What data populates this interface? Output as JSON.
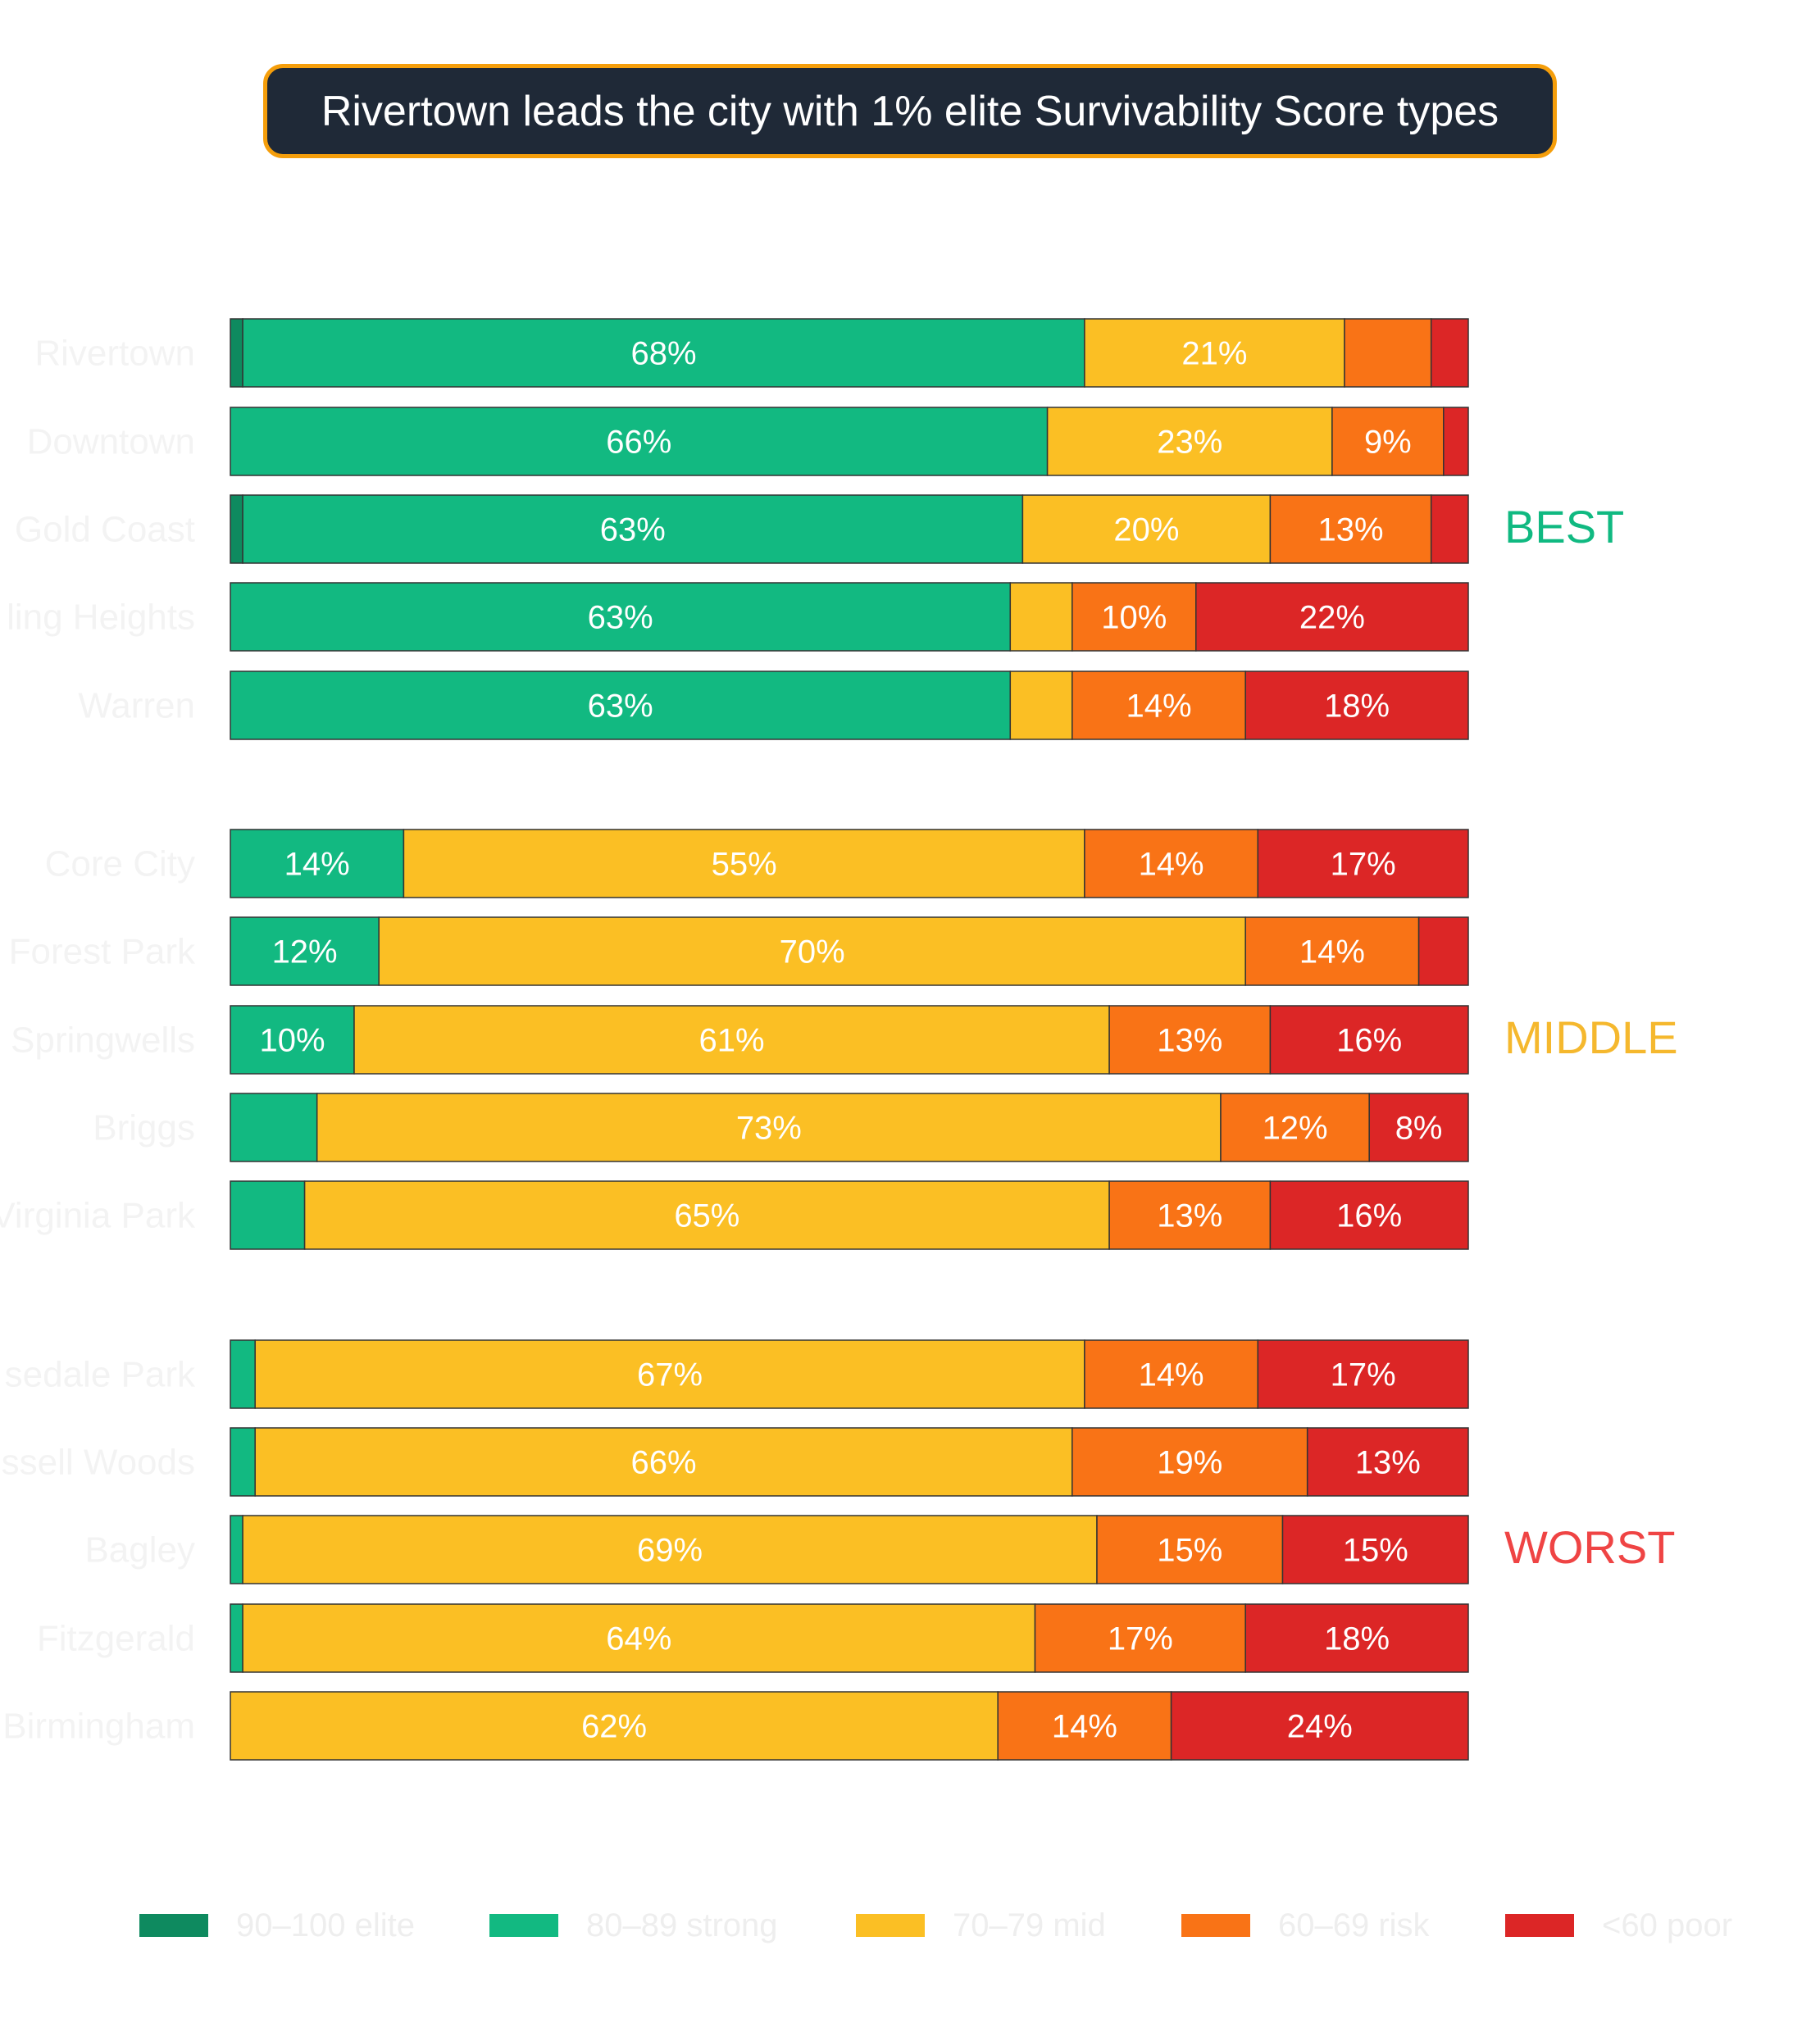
{
  "title": "Rivertown leads the city with 1% elite Survivability Score types",
  "chart_data": {
    "type": "bar",
    "orientation": "horizontal",
    "stacked": true,
    "title": "Rivertown leads the city with 1% elite Survivability Score types",
    "xlim": [
      0,
      100
    ],
    "categories": [
      "Rivertown",
      "Downtown",
      "Gold Coast",
      "Palmer Woods / Sherwood / Boston-Edison Heights — Sterling Heights",
      "Warren",
      "Core City",
      "Forest Park",
      "Springwells",
      "Briggs",
      "Virginia Park",
      "Rosedale Park",
      "Russell Woods",
      "Bagley",
      "Fitzgerald",
      "Birmingham"
    ],
    "series": [
      {
        "name": "90–100 elite",
        "color": "#0e8a5f",
        "values": [
          1,
          0,
          1,
          0,
          0,
          0,
          0,
          0,
          0,
          0,
          0,
          0,
          0,
          0,
          0
        ]
      },
      {
        "name": "80–89 strong",
        "color": "#12b981",
        "values": [
          68,
          66,
          63,
          63,
          63,
          14,
          12,
          10,
          7,
          6,
          2,
          2,
          1,
          1,
          0
        ]
      },
      {
        "name": "70–79 mid",
        "color": "#fbbf24",
        "values": [
          21,
          23,
          20,
          5,
          5,
          55,
          70,
          61,
          73,
          65,
          67,
          66,
          69,
          64,
          62
        ]
      },
      {
        "name": "60–69 risk",
        "color": "#f97316",
        "values": [
          7,
          9,
          13,
          10,
          14,
          14,
          14,
          13,
          12,
          13,
          14,
          19,
          15,
          17,
          14
        ]
      },
      {
        "name": "<60 poor",
        "color": "#dc2626",
        "values": [
          3,
          2,
          3,
          22,
          18,
          17,
          4,
          16,
          8,
          16,
          17,
          13,
          15,
          18,
          24
        ]
      }
    ],
    "groups": [
      {
        "label": "BEST",
        "color": "#10b981",
        "rows": [
          0,
          1,
          2,
          3,
          4
        ]
      },
      {
        "label": "MIDDLE",
        "color": "#f5b82e",
        "rows": [
          5,
          6,
          7,
          8,
          9
        ]
      },
      {
        "label": "WORST",
        "color": "#ef4444",
        "rows": [
          10,
          11,
          12,
          13,
          14
        ]
      }
    ],
    "legend_position": "bottom",
    "grid": false
  },
  "row_labels_shown": [
    "Rivertown",
    "Downtown",
    "Gold Coast",
    "ling Heights",
    "Warren",
    "Core City",
    "Forest Park",
    "Springwells",
    "Briggs",
    "Virginia Park",
    "sedale Park",
    "ssell Woods",
    "Bagley",
    "Fitzgerald",
    "Birmingham"
  ],
  "segment_labels": [
    [
      "",
      "68%",
      "21%",
      "",
      ""
    ],
    [
      "",
      "66%",
      "23%",
      "9%",
      ""
    ],
    [
      "",
      "63%",
      "20%",
      "13%",
      ""
    ],
    [
      "",
      "63%",
      "",
      "10%",
      "22%"
    ],
    [
      "",
      "63%",
      "",
      "14%",
      "18%"
    ],
    [
      "",
      "14%",
      "55%",
      "14%",
      "17%"
    ],
    [
      "",
      "12%",
      "70%",
      "14%",
      ""
    ],
    [
      "",
      "10%",
      "61%",
      "13%",
      "16%"
    ],
    [
      "",
      "",
      "73%",
      "12%",
      "8%"
    ],
    [
      "",
      "",
      "65%",
      "13%",
      "16%"
    ],
    [
      "",
      "",
      "67%",
      "14%",
      "17%"
    ],
    [
      "",
      "",
      "66%",
      "19%",
      "13%"
    ],
    [
      "",
      "",
      "69%",
      "15%",
      "15%"
    ],
    [
      "",
      "",
      "64%",
      "17%",
      "18%"
    ],
    [
      "",
      "",
      "62%",
      "14%",
      "24%"
    ]
  ]
}
